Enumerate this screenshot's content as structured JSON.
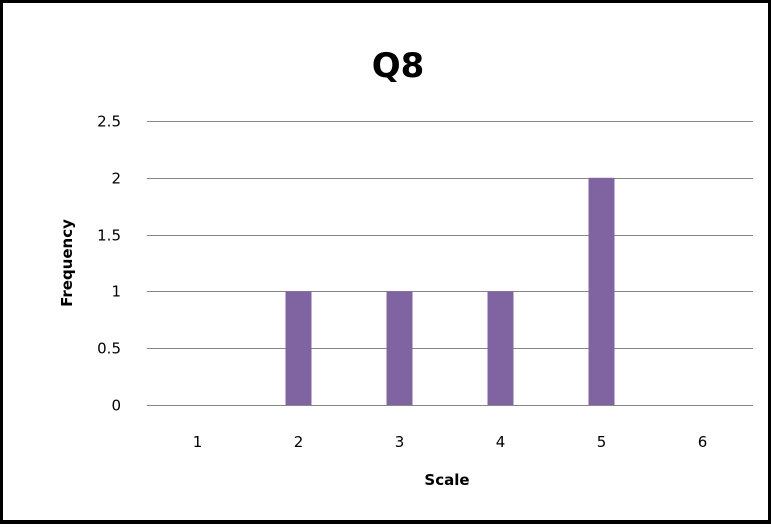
{
  "chart_data": {
    "type": "bar",
    "title": "Q8",
    "xlabel": "Scale",
    "ylabel": "Frequency",
    "categories": [
      "1",
      "2",
      "3",
      "4",
      "5",
      "6"
    ],
    "values": [
      0,
      1,
      1,
      1,
      2,
      0
    ],
    "ylim": [
      0,
      2.5
    ],
    "yticks": [
      "0",
      "0.5",
      "1",
      "1.5",
      "2",
      "2.5"
    ],
    "ytick_values": [
      0,
      0.5,
      1,
      1.5,
      2,
      2.5
    ],
    "grid": "horizontal",
    "bar_color": "#8064A2",
    "gridline_color": "#868686",
    "legend": "none"
  }
}
